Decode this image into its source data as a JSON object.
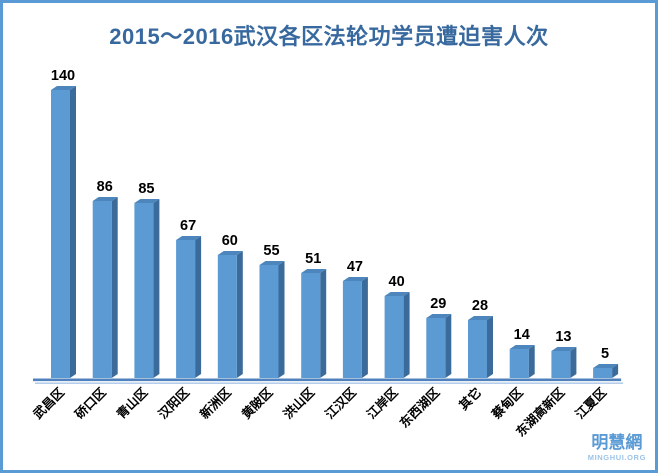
{
  "chart_data": {
    "type": "bar",
    "title": "2015～2016武汉各区法轮功学员遭迫害人次",
    "categories": [
      "武昌区",
      "硚口区",
      "青山区",
      "汉阳区",
      "新洲区",
      "黄陂区",
      "洪山区",
      "江汉区",
      "江岸区",
      "东西湖区",
      "其它",
      "蔡甸区",
      "东湖高新区",
      "江夏区"
    ],
    "values": [
      140,
      86,
      85,
      67,
      60,
      55,
      51,
      47,
      40,
      29,
      28,
      14,
      13,
      5
    ],
    "xlabel": "",
    "ylabel": "",
    "ylim": [
      0,
      150
    ],
    "grid": false,
    "legend": false,
    "bar_style": "3d",
    "data_labels": true,
    "colors": {
      "bar_front": "#5B9AD3",
      "bar_top": "#4C86BC",
      "bar_side": "#3A6B9B",
      "axis_line": "#4F81BD",
      "axis_line_light": "#A9C6E7",
      "value_label": "#000000",
      "category_label": "#000000",
      "title": "#38699E",
      "border": "#5B9BD5",
      "background": "#FFFFFF"
    }
  },
  "watermark": {
    "name": "明慧網",
    "org": "MINGHUI.ORG"
  }
}
